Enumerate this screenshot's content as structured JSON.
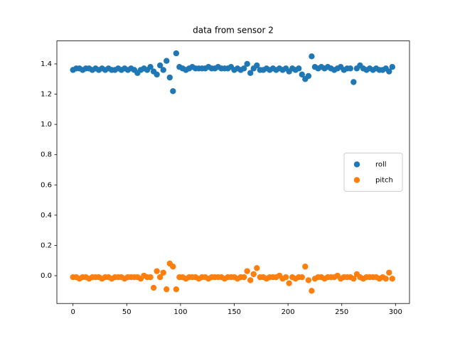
{
  "chart_data": {
    "type": "scatter",
    "title": "data from sensor 2",
    "x": [
      0,
      3,
      6,
      9,
      12,
      15,
      18,
      21,
      24,
      27,
      30,
      33,
      36,
      39,
      42,
      45,
      48,
      51,
      54,
      57,
      60,
      63,
      66,
      69,
      72,
      75,
      78,
      81,
      84,
      87,
      90,
      93,
      96,
      99,
      102,
      105,
      108,
      111,
      114,
      117,
      120,
      123,
      126,
      129,
      132,
      135,
      138,
      141,
      144,
      147,
      150,
      153,
      156,
      159,
      162,
      165,
      168,
      171,
      174,
      177,
      180,
      183,
      186,
      189,
      192,
      195,
      198,
      201,
      204,
      207,
      210,
      213,
      216,
      219,
      222,
      225,
      228,
      231,
      234,
      237,
      240,
      243,
      246,
      249,
      252,
      255,
      258,
      261,
      264,
      267,
      270,
      273,
      276,
      279,
      282,
      285,
      288,
      291,
      294,
      297
    ],
    "series": [
      {
        "name": "roll",
        "color": "#1f77b4",
        "values": [
          1.36,
          1.37,
          1.37,
          1.36,
          1.37,
          1.37,
          1.36,
          1.37,
          1.36,
          1.37,
          1.36,
          1.37,
          1.36,
          1.36,
          1.37,
          1.36,
          1.37,
          1.36,
          1.37,
          1.36,
          1.34,
          1.36,
          1.37,
          1.36,
          1.38,
          1.35,
          1.33,
          1.39,
          1.36,
          1.42,
          1.31,
          1.22,
          1.47,
          1.38,
          1.37,
          1.36,
          1.37,
          1.38,
          1.37,
          1.37,
          1.37,
          1.37,
          1.38,
          1.37,
          1.37,
          1.38,
          1.37,
          1.37,
          1.37,
          1.38,
          1.36,
          1.37,
          1.36,
          1.37,
          1.4,
          1.34,
          1.37,
          1.39,
          1.36,
          1.36,
          1.37,
          1.36,
          1.37,
          1.36,
          1.37,
          1.36,
          1.37,
          1.35,
          1.37,
          1.36,
          1.37,
          1.33,
          1.3,
          1.32,
          1.45,
          1.38,
          1.37,
          1.38,
          1.37,
          1.38,
          1.37,
          1.36,
          1.37,
          1.38,
          1.36,
          1.37,
          1.37,
          1.28,
          1.37,
          1.39,
          1.37,
          1.36,
          1.37,
          1.36,
          1.37,
          1.36,
          1.36,
          1.37,
          1.35,
          1.38
        ]
      },
      {
        "name": "pitch",
        "color": "#ff7f0e",
        "values": [
          -0.01,
          -0.01,
          -0.02,
          -0.01,
          -0.01,
          -0.02,
          -0.01,
          -0.01,
          -0.01,
          -0.02,
          -0.01,
          -0.01,
          -0.02,
          -0.01,
          -0.01,
          -0.01,
          -0.02,
          -0.01,
          -0.01,
          -0.01,
          -0.01,
          -0.02,
          0.0,
          -0.01,
          -0.01,
          -0.08,
          0.03,
          -0.01,
          0.02,
          -0.09,
          0.08,
          0.06,
          -0.09,
          -0.01,
          -0.01,
          -0.02,
          -0.01,
          -0.01,
          -0.01,
          -0.02,
          -0.01,
          -0.01,
          -0.02,
          -0.01,
          -0.01,
          -0.01,
          -0.01,
          -0.02,
          -0.01,
          -0.01,
          -0.01,
          -0.02,
          -0.01,
          -0.01,
          0.03,
          -0.03,
          0.01,
          0.05,
          -0.01,
          -0.01,
          -0.02,
          -0.01,
          -0.01,
          -0.01,
          0.0,
          -0.02,
          -0.01,
          -0.05,
          -0.01,
          -0.02,
          -0.01,
          -0.01,
          0.06,
          -0.03,
          -0.1,
          -0.02,
          -0.01,
          -0.01,
          -0.02,
          -0.01,
          -0.01,
          -0.01,
          0.0,
          -0.02,
          -0.01,
          -0.01,
          -0.01,
          -0.02,
          0.01,
          -0.01,
          -0.02,
          -0.01,
          -0.01,
          -0.01,
          -0.01,
          -0.02,
          -0.01,
          -0.02,
          0.02,
          -0.02
        ]
      }
    ],
    "xlim": [
      -15,
      313
    ],
    "ylim": [
      -0.184,
      1.552
    ],
    "xticks": [
      0,
      50,
      100,
      150,
      200,
      250,
      300
    ],
    "yticks": [
      {
        "value": 0,
        "label": "0.0"
      },
      0.2,
      0.4,
      0.6,
      0.8,
      {
        "value": 1,
        "label": "1.0"
      },
      1.2,
      1.4
    ],
    "legend": "center right"
  }
}
